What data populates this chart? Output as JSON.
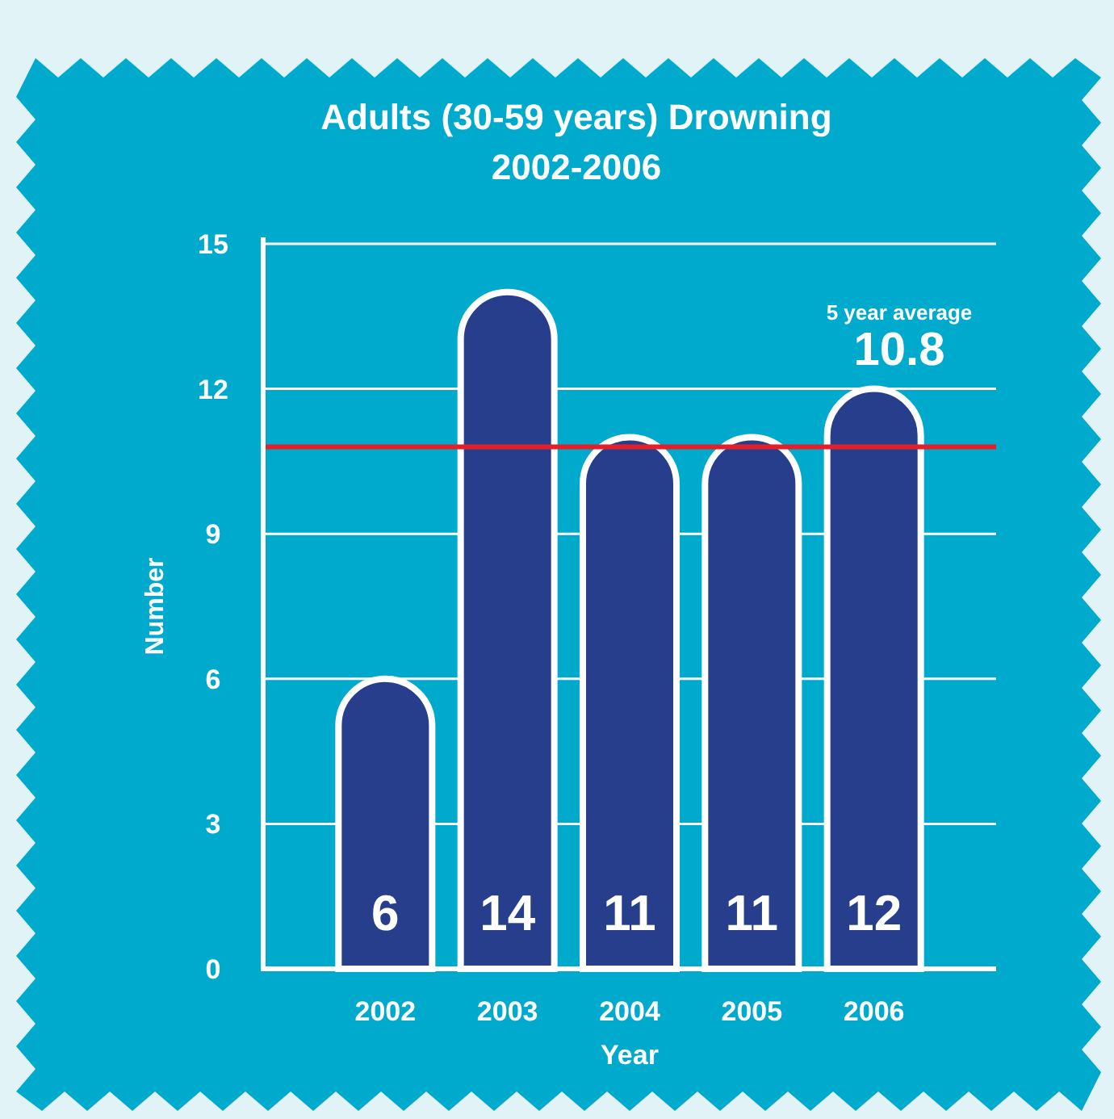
{
  "chart_data": {
    "type": "bar",
    "title": "Adults (30-59 years) Drowning\n2002-2006",
    "xlabel": "Year",
    "ylabel": "Number",
    "categories": [
      "2002",
      "2003",
      "2004",
      "2005",
      "2006"
    ],
    "values": [
      6,
      14,
      11,
      11,
      12
    ],
    "color": "#263e8c",
    "ylim": [
      0,
      15
    ],
    "yticks": [
      0,
      3,
      6,
      9,
      12,
      15
    ],
    "grid": "y",
    "data_labels": true,
    "ref_lines": [
      {
        "axis": "y",
        "value": 10.8,
        "color": "#e3202a"
      }
    ],
    "annotations": [
      "5 year average",
      "10.8"
    ]
  }
}
